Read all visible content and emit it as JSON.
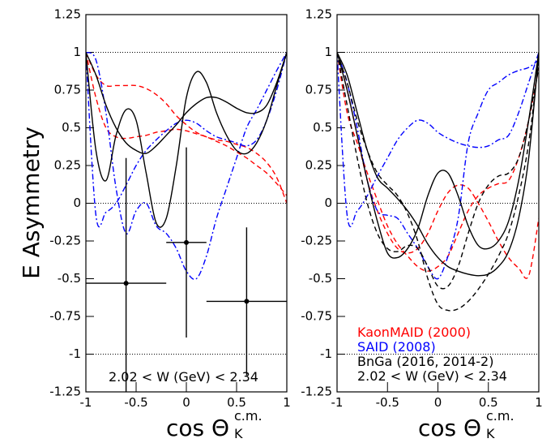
{
  "chart_data": [
    {
      "type": "line",
      "ylabel": "E Asymmetry",
      "xlabel": "cos Θ",
      "xlabel_sup": "c.m.",
      "xlabel_sub": "K",
      "annotation": "2.02 < W (GeV) < 2.34",
      "xlim": [
        -1,
        1
      ],
      "xticks": [
        -1,
        -0.5,
        0,
        0.5,
        1
      ],
      "ylim": [
        -1.25,
        1.25
      ],
      "yticks": [
        -1.25,
        -1,
        -0.75,
        -0.5,
        -0.25,
        0,
        0.25,
        0.5,
        0.75,
        1,
        1.25
      ],
      "hlines": [
        1,
        0,
        -1
      ],
      "x": [
        -1,
        -0.9,
        -0.8,
        -0.7,
        -0.6,
        -0.5,
        -0.4,
        -0.3,
        -0.2,
        -0.1,
        0,
        0.1,
        0.2,
        0.3,
        0.4,
        0.5,
        0.6,
        0.7,
        0.8,
        0.9,
        1
      ],
      "series": [
        {
          "color": "#ff0000",
          "dash": "dashed",
          "values": [
            1,
            0.85,
            0.78,
            0.78,
            0.78,
            0.78,
            0.76,
            0.72,
            0.66,
            0.58,
            0.52,
            0.47,
            0.44,
            0.42,
            0.41,
            0.39,
            0.37,
            0.33,
            0.27,
            0.17,
            0
          ]
        },
        {
          "color": "#ff0000",
          "dash": "dashed",
          "values": [
            1,
            0.7,
            0.5,
            0.44,
            0.43,
            0.44,
            0.45,
            0.47,
            0.48,
            0.49,
            0.48,
            0.46,
            0.44,
            0.41,
            0.38,
            0.34,
            0.3,
            0.25,
            0.2,
            0.13,
            0.05
          ]
        },
        {
          "color": "#0000ff",
          "dash": "dashdot",
          "values": [
            1,
            -0.08,
            -0.06,
            0,
            0.12,
            0.25,
            0.35,
            0.42,
            0.48,
            0.53,
            0.55,
            0.53,
            0.48,
            0.44,
            0.42,
            0.4,
            0.38,
            0.42,
            0.55,
            0.75,
            1
          ]
        },
        {
          "color": "#0000ff",
          "dash": "dashdot",
          "values": [
            1,
            0.95,
            0.6,
            0.1,
            -0.2,
            -0.05,
            0,
            -0.15,
            -0.2,
            -0.3,
            -0.45,
            -0.5,
            -0.35,
            -0.1,
            0.1,
            0.3,
            0.5,
            0.62,
            0.75,
            0.88,
            1
          ]
        },
        {
          "color": "#000000",
          "dash": "solid",
          "values": [
            1,
            0.35,
            0.15,
            0.45,
            0.62,
            0.55,
            0.2,
            -0.13,
            -0.1,
            0.25,
            0.7,
            0.87,
            0.8,
            0.6,
            0.45,
            0.35,
            0.33,
            0.4,
            0.55,
            0.78,
            1
          ]
        },
        {
          "color": "#000000",
          "dash": "solid",
          "values": [
            1,
            0.85,
            0.65,
            0.5,
            0.4,
            0.35,
            0.33,
            0.38,
            0.45,
            0.52,
            0.6,
            0.66,
            0.7,
            0.7,
            0.67,
            0.63,
            0.6,
            0.6,
            0.65,
            0.8,
            1
          ]
        }
      ],
      "points": {
        "x": [
          -0.6,
          0,
          0.6
        ],
        "y": [
          -0.53,
          -0.26,
          -0.65
        ],
        "xerr": [
          0.4,
          0.2,
          0.4
        ],
        "yerr": [
          0.83,
          0.63,
          0.49
        ]
      }
    },
    {
      "type": "line",
      "xlabel": "cos Θ",
      "xlabel_sup": "c.m.",
      "xlabel_sub": "K",
      "annotation": "2.02 < W (GeV) < 2.34",
      "xlim": [
        -1,
        1
      ],
      "xticks": [
        -1,
        -0.5,
        0,
        0.5,
        1
      ],
      "ylim": [
        -1.25,
        1.25
      ],
      "yticks": [
        -1.25,
        -1,
        -0.75,
        -0.5,
        -0.25,
        0,
        0.25,
        0.5,
        0.75,
        1,
        1.25
      ],
      "hlines": [
        1,
        0,
        -1
      ],
      "legend": "lower right",
      "x": [
        -1,
        -0.9,
        -0.8,
        -0.7,
        -0.6,
        -0.5,
        -0.4,
        -0.3,
        -0.2,
        -0.1,
        0,
        0.1,
        0.2,
        0.3,
        0.4,
        0.5,
        0.6,
        0.7,
        0.8,
        0.9,
        1
      ],
      "series": [
        {
          "name": "KaonMAID (2000)",
          "color": "#ff0000",
          "dash": "dashed",
          "values": [
            1,
            0.75,
            0.45,
            0.15,
            -0.05,
            -0.2,
            -0.3,
            -0.33,
            -0.3,
            -0.2,
            -0.05,
            0.07,
            0.12,
            0.1,
            0,
            -0.12,
            -0.25,
            -0.36,
            -0.43,
            -0.48,
            -0.1
          ]
        },
        {
          "color": "#ff0000",
          "dash": "dashed",
          "values": [
            1,
            0.6,
            0.4,
            0.2,
            0.02,
            -0.15,
            -0.27,
            -0.35,
            -0.42,
            -0.45,
            -0.42,
            -0.35,
            -0.2,
            -0.05,
            0.05,
            0.1,
            0.13,
            0.15,
            0.3,
            0.55,
            0.9
          ]
        },
        {
          "name": "SAID (2008)",
          "color": "#0000ff",
          "dash": "dashdot",
          "values": [
            1,
            -0.08,
            -0.05,
            0.05,
            0.18,
            0.3,
            0.42,
            0.5,
            0.55,
            0.53,
            0.47,
            0.43,
            0.4,
            0.38,
            0.37,
            0.38,
            0.42,
            0.45,
            0.6,
            0.8,
            1
          ]
        },
        {
          "color": "#0000ff",
          "dash": "dashdot",
          "values": [
            1,
            0.8,
            0.5,
            0.15,
            -0.05,
            -0.08,
            -0.1,
            -0.2,
            -0.3,
            -0.42,
            -0.5,
            -0.35,
            -0.1,
            0.4,
            0.6,
            0.75,
            0.8,
            0.85,
            0.88,
            0.9,
            0.95
          ]
        },
        {
          "name": "BnGa (2016, 2014-2)",
          "color": "#000000",
          "dash": "solid",
          "values": [
            1,
            0.75,
            0.45,
            0.15,
            -0.12,
            -0.33,
            -0.36,
            -0.3,
            -0.17,
            0.05,
            0.2,
            0.2,
            0.05,
            -0.15,
            -0.28,
            -0.3,
            -0.25,
            -0.12,
            0.15,
            0.55,
            1
          ]
        },
        {
          "color": "#000000",
          "dash": "solid",
          "values": [
            1,
            0.85,
            0.6,
            0.35,
            0.17,
            0.1,
            0.03,
            -0.05,
            -0.15,
            -0.27,
            -0.36,
            -0.42,
            -0.45,
            -0.47,
            -0.48,
            -0.47,
            -0.42,
            -0.32,
            -0.1,
            0.3,
            1
          ]
        },
        {
          "color": "#000000",
          "dash": "dashed",
          "values": [
            1,
            0.8,
            0.55,
            0.35,
            0.2,
            0.12,
            0.05,
            -0.07,
            -0.25,
            -0.5,
            -0.67,
            -0.71,
            -0.7,
            -0.65,
            -0.57,
            -0.47,
            -0.35,
            -0.2,
            0.05,
            0.4,
            0.95
          ]
        },
        {
          "color": "#000000",
          "dash": "dashed",
          "values": [
            1,
            0.65,
            0.3,
            0,
            -0.2,
            -0.3,
            -0.32,
            -0.28,
            -0.3,
            -0.42,
            -0.55,
            -0.55,
            -0.42,
            -0.2,
            0,
            0.12,
            0.18,
            0.2,
            0.3,
            0.55,
            0.9
          ]
        }
      ]
    }
  ]
}
